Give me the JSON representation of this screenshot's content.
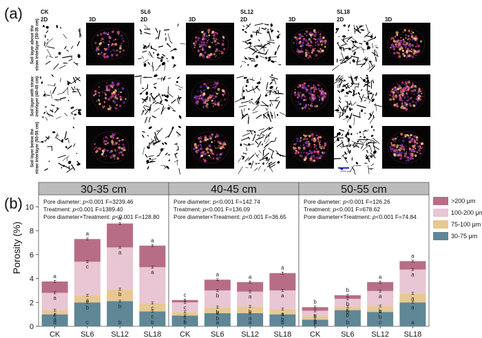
{
  "figure": {
    "label_a": "(a)",
    "label_b": "(b)",
    "treatments": [
      "CK",
      "SL6",
      "SL12",
      "SL18"
    ],
    "view_2d": "2D",
    "view_3d": "3D",
    "row_labels": [
      [
        "Soil layer above the",
        "straw interlayer (30-35 cm)"
      ],
      [
        "Soil layer with straw",
        "interlayer (40-45 cm)"
      ],
      [
        "Soil layer below the",
        "straw interlayer (50-55 cm)"
      ]
    ],
    "scale_bar_label": "4000 μm",
    "colors": {
      "c30_75": "#5f8796",
      "c75_100": "#e7c892",
      "c100_200": "#e8c6d3",
      "c200": "#b86d86",
      "strip": "#bcbcbc",
      "image_bg": "#050505",
      "pore_bright": "#f6c87a",
      "pore_mid": "#c4398f",
      "pore_dark": "#5a2aa8"
    }
  },
  "chart_data": {
    "type": "bar",
    "stacked": true,
    "categories": [
      "CK",
      "SL6",
      "SL12",
      "SL18"
    ],
    "ylabel": "Porosity (%)",
    "ylim": [
      0,
      11
    ],
    "yticks": [
      0,
      2,
      4,
      6,
      8,
      10
    ],
    "legend": {
      "placement": "top-right",
      "entries": [
        {
          "label": ">200 μm",
          "color": "#b86d86"
        },
        {
          "label": "100-200 μm",
          "color": "#e8c6d3"
        },
        {
          "label": "75-100 μm",
          "color": "#e7c892"
        },
        {
          "label": "30-75 μm",
          "color": "#5f8796"
        }
      ]
    },
    "series_names": [
      "30-75 μm",
      "75-100 μm",
      "100-200 μm",
      ">200 μm"
    ],
    "series_colors": [
      "#5f8796",
      "#e7c892",
      "#e8c6d3",
      "#b86d86"
    ],
    "panels": [
      {
        "title": "30-35 cm",
        "stats": [
          [
            "Pore diameter: ",
            "p",
            "<0.001 F=3239.46"
          ],
          [
            "Treatment: ",
            "p",
            "<0.001 F=1389.40"
          ],
          [
            "Pore diameter×Treatment: ",
            "p",
            "<0.001 F=128.80"
          ]
        ],
        "series": [
          {
            "name": "30-75 μm",
            "values": [
              1.0,
              2.0,
              2.1,
              1.25
            ]
          },
          {
            "name": "75-100 μm",
            "values": [
              0.35,
              0.6,
              1.0,
              0.7
            ]
          },
          {
            "name": "100-200 μm",
            "values": [
              1.45,
              2.8,
              3.5,
              3.0
            ]
          },
          {
            "name": ">200 μm",
            "values": [
              0.95,
              1.9,
              2.0,
              1.8
            ]
          }
        ],
        "letters": [
          [
            "d",
            "c",
            "b",
            "b"
          ],
          [
            "a",
            "b",
            "b",
            "c"
          ],
          [
            "c",
            "a",
            "b",
            "c"
          ],
          [
            "a",
            "c",
            "a",
            "a"
          ],
          [
            "a",
            "a",
            "a",
            "a"
          ]
        ]
      },
      {
        "title": "40-45 cm",
        "stats": [
          [
            "Pore diameter: ",
            "p",
            "<0.001 F=142.74"
          ],
          [
            "Treatment: ",
            "p",
            "<0.001 F=136.09"
          ],
          [
            "Pore diameter×Treatment: ",
            "p",
            "<0.001 F=36.65"
          ]
        ],
        "series": [
          {
            "name": "30-75 μm",
            "values": [
              0.9,
              1.1,
              1.1,
              1.0
            ]
          },
          {
            "name": "75-100 μm",
            "values": [
              0.3,
              0.5,
              0.55,
              0.45
            ]
          },
          {
            "name": "100-200 μm",
            "values": [
              0.8,
              1.4,
              1.25,
              1.55
            ]
          },
          {
            "name": ">200 μm",
            "values": [
              0.2,
              0.9,
              0.8,
              1.45
            ]
          }
        ],
        "letters": [
          [
            "b",
            "a",
            "a",
            "b"
          ],
          [
            "c",
            "b",
            "a",
            "b"
          ],
          [
            "c",
            "b",
            "b",
            "a"
          ],
          [
            "c",
            "b",
            "a",
            "a"
          ],
          [
            "c",
            "a",
            "a",
            "a"
          ]
        ]
      },
      {
        "title": "50-55 cm",
        "stats": [
          [
            "Pore diameter: ",
            "p",
            "<0.001 F=126.26"
          ],
          [
            "Treatment: ",
            "p",
            "<0.001 F=678.62"
          ],
          [
            "Pore diameter×Treatment: ",
            "p",
            "<0.001 F=74.84"
          ]
        ],
        "series": [
          {
            "name": "30-75 μm",
            "values": [
              0.55,
              1.35,
              1.2,
              2.0
            ]
          },
          {
            "name": "75-100 μm",
            "values": [
              0.3,
              0.3,
              0.5,
              0.75
            ]
          },
          {
            "name": "100-200 μm",
            "values": [
              0.45,
              0.65,
              1.25,
              2.0
            ]
          },
          {
            "name": ">200 μm",
            "values": [
              0.3,
              0.3,
              0.75,
              0.7
            ]
          }
        ],
        "letters": [
          [
            "d",
            "b",
            "c",
            "a"
          ],
          [
            "c",
            "b",
            "b",
            "a"
          ],
          [
            "c",
            "b",
            "b",
            "a"
          ],
          [
            "b",
            "b",
            "a",
            "a"
          ],
          [
            "b",
            "b",
            "a",
            "a"
          ]
        ]
      }
    ]
  }
}
